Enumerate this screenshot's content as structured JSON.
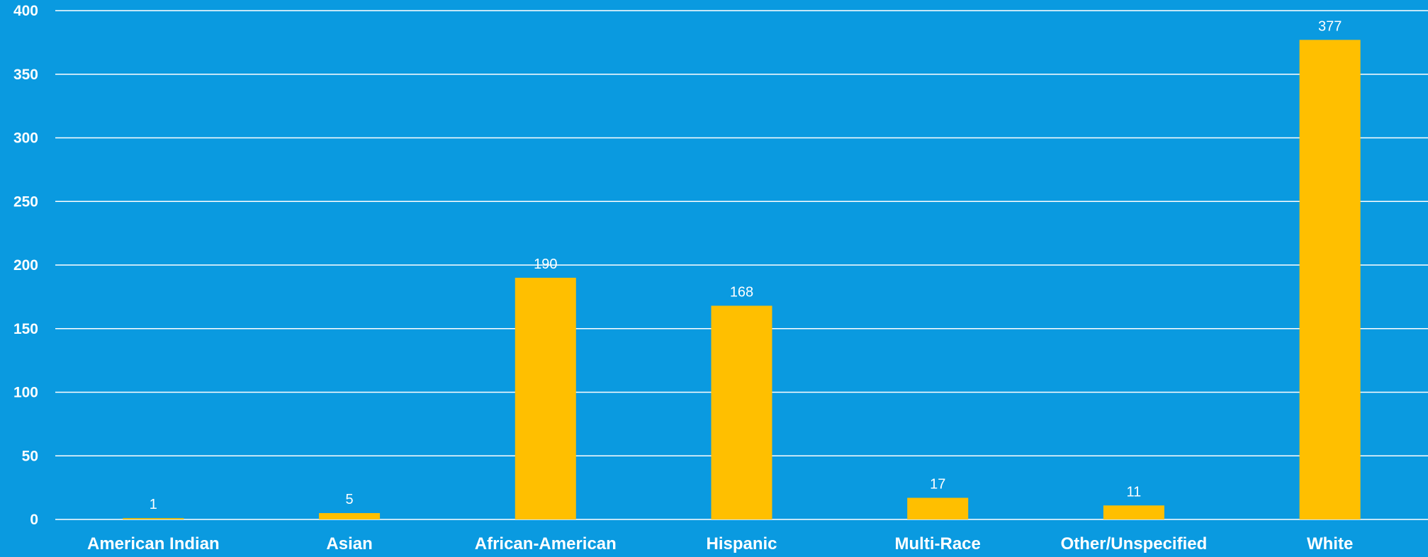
{
  "chart_data": {
    "type": "bar",
    "categories": [
      "American Indian",
      "Asian",
      "African-American",
      "Hispanic",
      "Multi-Race",
      "Other/Unspecified",
      "White"
    ],
    "values": [
      1,
      5,
      190,
      168,
      17,
      11,
      377
    ],
    "data_labels": [
      "1",
      "5",
      "190",
      "168",
      "17",
      "11",
      "377"
    ],
    "yticks": [
      "0",
      "50",
      "100",
      "150",
      "200",
      "250",
      "300",
      "350",
      "400"
    ],
    "ylim": [
      0,
      400
    ],
    "grid": true,
    "legend": "none",
    "colors": {
      "background": "#0a9ae0",
      "bar": "#ffbf00",
      "grid": "#ffffff",
      "text": "#ffffff"
    }
  }
}
